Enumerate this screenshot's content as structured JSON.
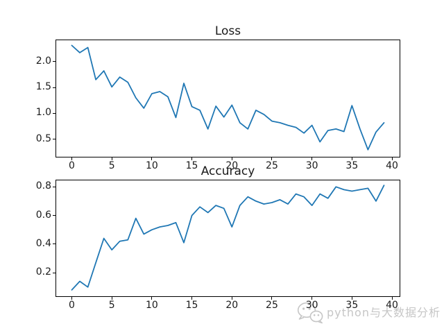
{
  "figure": {
    "background": "#ffffff",
    "text_color": "#1a1a1a"
  },
  "watermark": {
    "text": "python与大数据分析",
    "icon": "wechat-icon",
    "color": "#c6c6c6"
  },
  "chart_data": [
    {
      "type": "line",
      "title": "Loss",
      "xlabel": "",
      "ylabel": "",
      "grid": false,
      "legend": "none",
      "line_color": "#1f77b4",
      "xlim": [
        -1.95,
        40.95
      ],
      "ylim": [
        0.163,
        2.41
      ],
      "xticks": [
        0,
        5,
        10,
        15,
        20,
        25,
        30,
        35,
        40
      ],
      "xtick_labels": [
        "0",
        "5",
        "10",
        "15",
        "20",
        "25",
        "30",
        "35",
        "40"
      ],
      "yticks": [
        0.5,
        1.0,
        1.5,
        2.0
      ],
      "ytick_labels": [
        "0.5",
        "1.0",
        "1.5",
        "2.0"
      ],
      "x": [
        0,
        1,
        2,
        3,
        4,
        5,
        6,
        7,
        8,
        9,
        10,
        11,
        12,
        13,
        14,
        15,
        16,
        17,
        18,
        19,
        20,
        21,
        22,
        23,
        24,
        25,
        26,
        27,
        28,
        29,
        30,
        31,
        32,
        33,
        34,
        35,
        36,
        37,
        38,
        39
      ],
      "values": [
        2.31,
        2.17,
        2.27,
        1.65,
        1.82,
        1.51,
        1.7,
        1.6,
        1.3,
        1.1,
        1.38,
        1.42,
        1.32,
        0.92,
        1.58,
        1.13,
        1.06,
        0.7,
        1.14,
        0.93,
        1.16,
        0.82,
        0.7,
        1.06,
        0.98,
        0.85,
        0.82,
        0.77,
        0.73,
        0.62,
        0.77,
        0.45,
        0.67,
        0.7,
        0.65,
        1.15,
        0.7,
        0.3,
        0.64,
        0.82
      ]
    },
    {
      "type": "line",
      "title": "Accuracy",
      "xlabel": "",
      "ylabel": "",
      "grid": false,
      "legend": "none",
      "line_color": "#1f77b4",
      "xlim": [
        -1.95,
        40.95
      ],
      "ylim": [
        0.036,
        0.845
      ],
      "xticks": [
        0,
        5,
        10,
        15,
        20,
        25,
        30,
        35,
        40
      ],
      "xtick_labels": [
        "0",
        "5",
        "10",
        "15",
        "20",
        "25",
        "30",
        "35",
        "40"
      ],
      "yticks": [
        0.2,
        0.4,
        0.6,
        0.8
      ],
      "ytick_labels": [
        "0.2",
        "0.4",
        "0.6",
        "0.8"
      ],
      "x": [
        0,
        1,
        2,
        3,
        4,
        5,
        6,
        7,
        8,
        9,
        10,
        11,
        12,
        13,
        14,
        15,
        16,
        17,
        18,
        19,
        20,
        21,
        22,
        23,
        24,
        25,
        26,
        27,
        28,
        29,
        30,
        31,
        32,
        33,
        34,
        35,
        36,
        37,
        38,
        39
      ],
      "values": [
        0.08,
        0.14,
        0.1,
        0.27,
        0.44,
        0.36,
        0.42,
        0.43,
        0.58,
        0.47,
        0.5,
        0.52,
        0.53,
        0.55,
        0.41,
        0.6,
        0.66,
        0.62,
        0.67,
        0.65,
        0.52,
        0.67,
        0.73,
        0.7,
        0.68,
        0.69,
        0.71,
        0.68,
        0.75,
        0.73,
        0.67,
        0.75,
        0.72,
        0.8,
        0.78,
        0.77,
        0.78,
        0.79,
        0.7,
        0.81
      ]
    }
  ]
}
